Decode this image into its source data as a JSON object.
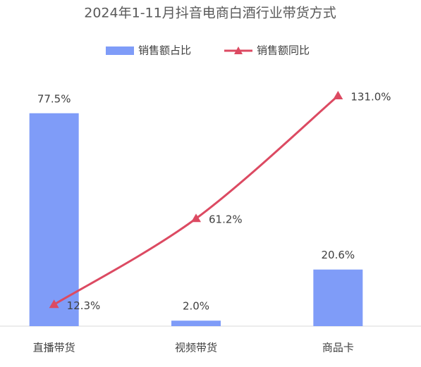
{
  "chart_data": {
    "type": "bar_line",
    "title": "2024年1-11月抖音电商白酒行业带货方式",
    "categories": [
      "直播带货",
      "视频带货",
      "商品卡"
    ],
    "series": [
      {
        "name": "销售额占比",
        "type": "bar",
        "color": "#7f9cf8",
        "values": [
          77.5,
          2.0,
          20.6
        ],
        "value_labels": [
          "77.5%",
          "2.0%",
          "20.6%"
        ]
      },
      {
        "name": "销售额同比",
        "type": "line",
        "axis": "y2",
        "color": "#dc4a62",
        "values": [
          12.3,
          61.2,
          131.0
        ],
        "value_labels": [
          "12.3%",
          "61.2%",
          "131.0%"
        ]
      }
    ],
    "ylim": [
      0,
      80
    ],
    "y2lim": [
      0,
      125
    ],
    "legend": "top"
  }
}
